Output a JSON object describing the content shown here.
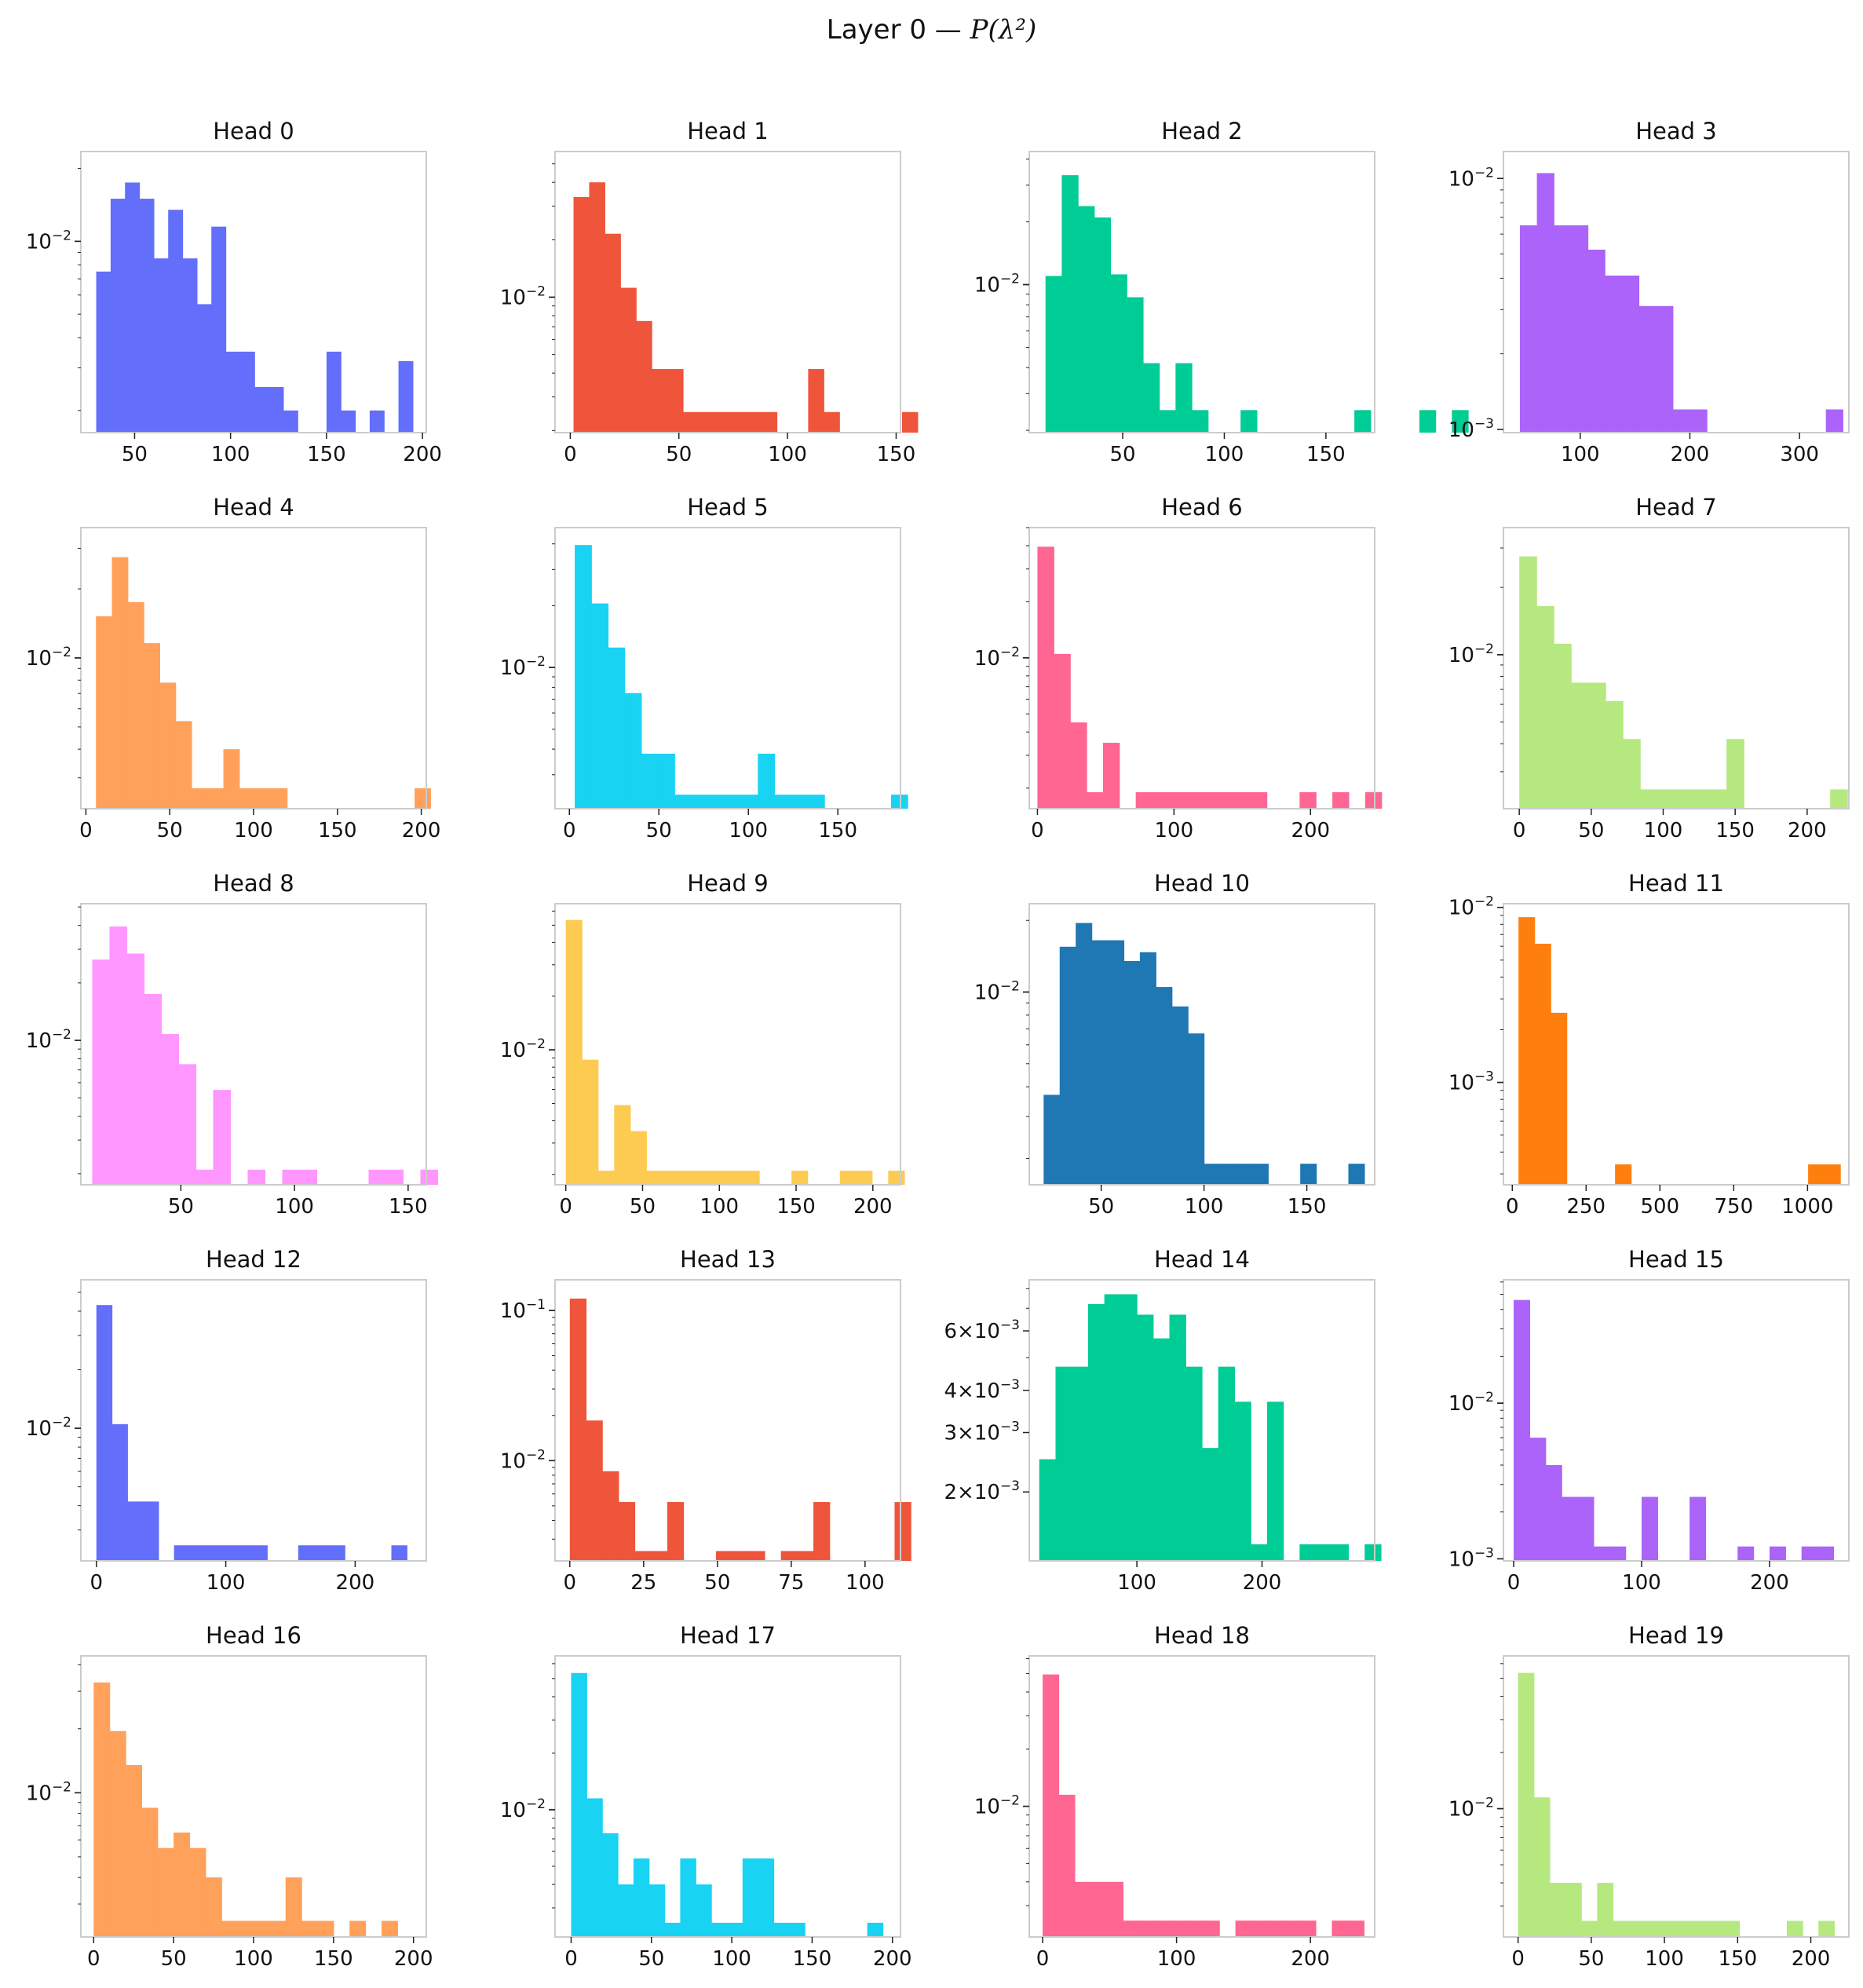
{
  "figure_title": {
    "prefix": "Layer 0 — ",
    "math": "P(λ²)"
  },
  "colors": {
    "c0": "#636efa",
    "c1": "#ef553b",
    "c2": "#00cc96",
    "c3": "#ab63fa",
    "c4": "#ffa15a",
    "c5": "#19d3f3",
    "c6": "#ff6692",
    "c7": "#b6e880",
    "c8": "#ff97ff",
    "c9": "#fecb52",
    "c10": "#1f77b4",
    "c11": "#ff7f0e"
  },
  "chart_data": [
    {
      "type": "bar",
      "title": "Head 0",
      "color": "#636efa",
      "xlim": [
        22,
        202
      ],
      "ylim": [
        0.00162,
        0.0235
      ],
      "yscale": "log",
      "xticks": [
        50,
        100,
        150,
        200
      ],
      "yticks": [
        {
          "v": 0.01,
          "label": "10^-2"
        }
      ],
      "bin_width": 7.5,
      "bins_start": 30,
      "values": [
        0.0075,
        0.015,
        0.0175,
        0.015,
        0.0085,
        0.0135,
        0.0085,
        0.0055,
        0.0115,
        0.0035,
        0.0035,
        0.0025,
        0.0025,
        0.002,
        0,
        0,
        0.0035,
        0.002,
        0,
        0.002,
        0,
        0.0032
      ]
    },
    {
      "type": "bar",
      "title": "Head 1",
      "color": "#ef553b",
      "xlim": [
        -7,
        152
      ],
      "ylim": [
        0.00195,
        0.058
      ],
      "yscale": "log",
      "xticks": [
        0,
        50,
        100,
        150
      ],
      "yticks": [
        {
          "v": 0.01,
          "label": "10^-2"
        }
      ],
      "bin_width": 7.2,
      "bins_start": 1.5,
      "values": [
        0.0335,
        0.04,
        0.0215,
        0.0112,
        0.0075,
        0.0042,
        0.0042,
        0.0025,
        0.0025,
        0.0025,
        0.0025,
        0.0025,
        0.0025,
        0,
        0,
        0.0042,
        0.0025,
        0,
        0,
        0,
        0,
        0.0025,
        0,
        0,
        0,
        0
      ]
    },
    {
      "type": "bar",
      "title": "Head 2",
      "color": "#00cc96",
      "xlim": [
        4,
        174
      ],
      "ylim": [
        0.00195,
        0.0435
      ],
      "yscale": "log",
      "xticks": [
        50,
        100,
        150
      ],
      "yticks": [
        {
          "v": 0.01,
          "label": "10^-2"
        }
      ],
      "bin_width": 8,
      "bins_start": 12,
      "values": [
        0.011,
        0.0335,
        0.0238,
        0.021,
        0.0112,
        0.0087,
        0.0042,
        0.0025,
        0.0042,
        0.0025,
        0,
        0,
        0.0025,
        0,
        0,
        0,
        0,
        0,
        0,
        0.0025,
        0,
        0,
        0,
        0.0025,
        0,
        0.0025,
        0,
        0,
        0
      ]
    },
    {
      "type": "bar",
      "title": "Head 3",
      "color": "#ab63fa",
      "xlim": [
        30,
        345
      ],
      "ylim": [
        0.00097,
        0.0128
      ],
      "yscale": "log",
      "xticks": [
        100,
        200,
        300
      ],
      "yticks": [
        {
          "v": 0.01,
          "label": "10^-2"
        },
        {
          "v": 0.001,
          "label": "10^-3"
        }
      ],
      "bin_width": 15.5,
      "bins_start": 45,
      "values": [
        0.0065,
        0.0105,
        0.0065,
        0.0065,
        0.0052,
        0.0041,
        0.0041,
        0.0031,
        0.0031,
        0.0012,
        0.0012,
        0,
        0,
        0,
        0,
        0,
        0,
        0,
        0.0012
      ]
    },
    {
      "type": "bar",
      "title": "Head 4",
      "color": "#ffa15a",
      "xlim": [
        -3,
        203
      ],
      "ylim": [
        0.0022,
        0.037
      ],
      "yscale": "log",
      "xticks": [
        0,
        50,
        100,
        150,
        200
      ],
      "yticks": [
        {
          "v": 0.01,
          "label": "10^-2"
        }
      ],
      "bin_width": 9.5,
      "bins_start": 6,
      "values": [
        0.0152,
        0.0275,
        0.0175,
        0.0116,
        0.0078,
        0.0053,
        0.0027,
        0.0027,
        0.004,
        0.0027,
        0.0027,
        0.0027,
        0,
        0,
        0,
        0,
        0,
        0,
        0,
        0,
        0.0027
      ]
    },
    {
      "type": "bar",
      "title": "Head 5",
      "color": "#19d3f3",
      "xlim": [
        -8,
        185
      ],
      "ylim": [
        0.00205,
        0.048
      ],
      "yscale": "log",
      "xticks": [
        0,
        50,
        100,
        150
      ],
      "yticks": [
        {
          "v": 0.01,
          "label": "10^-2"
        }
      ],
      "bin_width": 9.3,
      "bins_start": 3,
      "values": [
        0.0395,
        0.0205,
        0.0125,
        0.0075,
        0.0038,
        0.0038,
        0.0024,
        0.0024,
        0.0024,
        0.0024,
        0.0024,
        0.0038,
        0.0024,
        0.0024,
        0.0024,
        0,
        0,
        0,
        0,
        0.0024
      ]
    },
    {
      "type": "bar",
      "title": "Head 6",
      "color": "#ff6692",
      "xlim": [
        -6,
        247
      ],
      "ylim": [
        0.00155,
        0.05
      ],
      "yscale": "log",
      "xticks": [
        0,
        100,
        200
      ],
      "yticks": [
        {
          "v": 0.01,
          "label": "10^-2"
        }
      ],
      "bin_width": 12,
      "bins_start": 0,
      "values": [
        0.0395,
        0.0105,
        0.0045,
        0.0019,
        0.0035,
        0,
        0.0019,
        0.0019,
        0.0019,
        0.0019,
        0.0019,
        0.0019,
        0.0019,
        0.0019,
        0,
        0,
        0.0019,
        0,
        0.0019,
        0,
        0.0019
      ]
    },
    {
      "type": "bar",
      "title": "Head 7",
      "color": "#b6e880",
      "xlim": [
        -11,
        229
      ],
      "ylim": [
        0.00205,
        0.037
      ],
      "yscale": "log",
      "xticks": [
        0,
        50,
        100,
        150,
        200
      ],
      "yticks": [
        {
          "v": 0.01,
          "label": "10^-2"
        }
      ],
      "bin_width": 12,
      "bins_start": 0,
      "values": [
        0.0275,
        0.0165,
        0.0112,
        0.0075,
        0.0075,
        0.0062,
        0.0042,
        0.0025,
        0.0025,
        0.0025,
        0.0025,
        0.0025,
        0.0042,
        0,
        0,
        0,
        0,
        0,
        0.0025
      ]
    },
    {
      "type": "bar",
      "title": "Head 8",
      "color": "#ff97ff",
      "xlim": [
        6,
        158
      ],
      "ylim": [
        0.00175,
        0.052
      ],
      "yscale": "log",
      "xticks": [
        50,
        100,
        150
      ],
      "yticks": [
        {
          "v": 0.01,
          "label": "10^-2"
        }
      ],
      "bin_width": 7.6,
      "bins_start": 11,
      "values": [
        0.0265,
        0.0395,
        0.0285,
        0.0175,
        0.0108,
        0.0075,
        0.0021,
        0.0055,
        0,
        0.0021,
        0,
        0.0021,
        0.0021,
        0,
        0,
        0,
        0.0021,
        0.0021,
        0,
        0.0021
      ]
    },
    {
      "type": "bar",
      "title": "Head 9",
      "color": "#fecb52",
      "xlim": [
        -7,
        218
      ],
      "ylim": [
        0.00175,
        0.066
      ],
      "yscale": "log",
      "xticks": [
        0,
        50,
        100,
        150,
        200
      ],
      "yticks": [
        {
          "v": 0.01,
          "label": "10^-2"
        }
      ],
      "bin_width": 10.5,
      "bins_start": 0,
      "values": [
        0.0535,
        0.0088,
        0.0021,
        0.0049,
        0.0035,
        0.0021,
        0.0021,
        0.0021,
        0.0021,
        0.0021,
        0.0021,
        0.0021,
        0,
        0,
        0.0021,
        0,
        0,
        0.0021,
        0.0021,
        0,
        0.0021
      ]
    },
    {
      "type": "bar",
      "title": "Head 10",
      "color": "#1f77b4",
      "xlim": [
        15,
        183
      ],
      "ylim": [
        0.00155,
        0.0235
      ],
      "yscale": "log",
      "xticks": [
        50,
        100,
        150
      ],
      "yticks": [
        {
          "v": 0.01,
          "label": "10^-2"
        }
      ],
      "bin_width": 7.8,
      "bins_start": 22,
      "values": [
        0.0037,
        0.0155,
        0.0195,
        0.0165,
        0.0165,
        0.0135,
        0.0147,
        0.0105,
        0.0087,
        0.0067,
        0.0019,
        0.0019,
        0.0019,
        0.0019,
        0,
        0,
        0.0019,
        0,
        0,
        0.0019
      ]
    },
    {
      "type": "bar",
      "title": "Head 11",
      "color": "#ff7f0e",
      "xlim": [
        -30,
        1140
      ],
      "ylim": [
        0.00026,
        0.0105
      ],
      "yscale": "log",
      "xticks": [
        0,
        250,
        500,
        750,
        1000
      ],
      "yticks": [
        {
          "v": 0.01,
          "label": "10^-2"
        },
        {
          "v": 0.001,
          "label": "10^-3"
        }
      ],
      "bin_width": 54.5,
      "bins_start": 21,
      "values": [
        0.0088,
        0.0062,
        0.0025,
        0,
        0,
        0,
        0.00034,
        0,
        0,
        0,
        0,
        0,
        0,
        0,
        0,
        0,
        0,
        0,
        0.00034,
        0.00034
      ]
    },
    {
      "type": "bar",
      "title": "Head 12",
      "color": "#636efa",
      "xlim": [
        -12,
        255
      ],
      "ylim": [
        0.00208,
        0.058
      ],
      "yscale": "log",
      "xticks": [
        0,
        100,
        200
      ],
      "yticks": [
        {
          "v": 0.01,
          "label": "10^-2"
        }
      ],
      "bin_width": 12,
      "bins_start": 0,
      "values": [
        0.043,
        0.0105,
        0.0042,
        0.0042,
        0,
        0.0025,
        0.0025,
        0.0025,
        0.0025,
        0.0025,
        0.0025,
        0,
        0,
        0.0025,
        0.0025,
        0.0025,
        0,
        0,
        0,
        0.0025
      ]
    },
    {
      "type": "bar",
      "title": "Head 13",
      "color": "#ef553b",
      "xlim": [
        -5,
        112
      ],
      "ylim": [
        0.00215,
        0.16
      ],
      "yscale": "log",
      "xticks": [
        0,
        25,
        50,
        75,
        100
      ],
      "yticks": [
        {
          "v": 0.1,
          "label": "10^-1"
        },
        {
          "v": 0.01,
          "label": "10^-2"
        }
      ],
      "bin_width": 5.5,
      "bins_start": 0,
      "values": [
        0.12,
        0.0185,
        0.0085,
        0.0053,
        0.0025,
        0.0025,
        0.0053,
        0,
        0,
        0.0025,
        0.0025,
        0.0025,
        0,
        0.0025,
        0.0025,
        0.0053,
        0,
        0,
        0,
        0,
        0.0053
      ]
    },
    {
      "type": "bar",
      "title": "Head 14",
      "color": "#00cc96",
      "xlim": [
        14,
        290
      ],
      "ylim": [
        0.00125,
        0.0085
      ],
      "yscale": "log",
      "xticks": [
        100,
        200
      ],
      "yticks": [
        {
          "v": 0.006,
          "label": "6×10^-3"
        },
        {
          "v": 0.004,
          "label": "4×10^-3"
        },
        {
          "v": 0.003,
          "label": "3×10^-3"
        },
        {
          "v": 0.002,
          "label": "2×10^-3"
        }
      ],
      "bin_width": 13,
      "bins_start": 22,
      "values": [
        0.0025,
        0.0047,
        0.0047,
        0.0072,
        0.0077,
        0.0077,
        0.0067,
        0.0057,
        0.0067,
        0.0047,
        0.0027,
        0.0047,
        0.0037,
        0.0014,
        0.0037,
        0,
        0.0014,
        0.0014,
        0.0014,
        0,
        0.0014
      ]
    },
    {
      "type": "bar",
      "title": "Head 15",
      "color": "#ab63fa",
      "xlim": [
        -8,
        262
      ],
      "ylim": [
        0.00097,
        0.062
      ],
      "yscale": "log",
      "xticks": [
        0,
        100,
        200
      ],
      "yticks": [
        {
          "v": 0.01,
          "label": "10^-2"
        },
        {
          "v": 0.001,
          "label": "10^-3"
        }
      ],
      "bin_width": 12.5,
      "bins_start": 0,
      "values": [
        0.046,
        0.006,
        0.004,
        0.0025,
        0.0025,
        0.0012,
        0.0012,
        0,
        0.0025,
        0,
        0,
        0.0025,
        0,
        0,
        0.0012,
        0,
        0.0012,
        0,
        0.0012,
        0.0012
      ]
    },
    {
      "type": "bar",
      "title": "Head 16",
      "color": "#ffa15a",
      "xlim": [
        -8,
        208
      ],
      "ylim": [
        0.0021,
        0.044
      ],
      "yscale": "log",
      "xticks": [
        0,
        50,
        100,
        150,
        200
      ],
      "yticks": [
        {
          "v": 0.01,
          "label": "10^-2"
        }
      ],
      "bin_width": 10,
      "bins_start": 0,
      "values": [
        0.033,
        0.0195,
        0.0135,
        0.0085,
        0.0055,
        0.0065,
        0.0055,
        0.004,
        0.0025,
        0.0025,
        0.0025,
        0.0025,
        0.004,
        0.0025,
        0.0025,
        0,
        0.0025,
        0,
        0.0025,
        0
      ]
    },
    {
      "type": "bar",
      "title": "Head 17",
      "color": "#19d3f3",
      "xlim": [
        -10,
        205
      ],
      "ylim": [
        0.0021,
        0.066
      ],
      "yscale": "log",
      "xticks": [
        0,
        50,
        100,
        150,
        200
      ],
      "yticks": [
        {
          "v": 0.01,
          "label": "10^-2"
        }
      ],
      "bin_width": 9.7,
      "bins_start": 0,
      "values": [
        0.0535,
        0.0115,
        0.0075,
        0.004,
        0.0055,
        0.004,
        0.0025,
        0.0055,
        0.004,
        0.0025,
        0.0025,
        0.0055,
        0.0055,
        0.0025,
        0.0025,
        0,
        0,
        0,
        0,
        0.0025
      ]
    },
    {
      "type": "bar",
      "title": "Head 18",
      "color": "#ff6692",
      "xlim": [
        -10,
        248
      ],
      "ylim": [
        0.00205,
        0.062
      ],
      "yscale": "log",
      "xticks": [
        0,
        100,
        200
      ],
      "yticks": [
        {
          "v": 0.01,
          "label": "10^-2"
        }
      ],
      "bin_width": 12,
      "bins_start": 0,
      "values": [
        0.0495,
        0.0115,
        0.004,
        0.004,
        0.004,
        0.0025,
        0.0025,
        0.0025,
        0.0025,
        0.0025,
        0.0025,
        0,
        0.0025,
        0.0025,
        0.0025,
        0.0025,
        0.0025,
        0,
        0.0025,
        0.0025
      ]
    },
    {
      "type": "bar",
      "title": "Head 19",
      "color": "#b6e880",
      "xlim": [
        -10,
        226
      ],
      "ylim": [
        0.00205,
        0.066
      ],
      "yscale": "log",
      "xticks": [
        0,
        50,
        100,
        150,
        200
      ],
      "yticks": [
        {
          "v": 0.01,
          "label": "10^-2"
        }
      ],
      "bin_width": 10.8,
      "bins_start": 0,
      "values": [
        0.0535,
        0.0115,
        0.004,
        0.004,
        0.0025,
        0.004,
        0.0025,
        0.0025,
        0.0025,
        0.0025,
        0.0025,
        0.0025,
        0.0025,
        0.0025,
        0,
        0,
        0,
        0.0025,
        0,
        0.0025
      ]
    }
  ]
}
